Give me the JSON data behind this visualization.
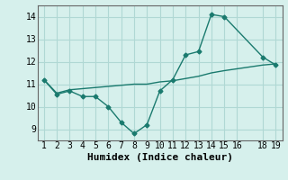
{
  "title": "",
  "xlabel": "Humidex (Indice chaleur)",
  "ylabel": "",
  "bg_color": "#d6f0ec",
  "grid_color": "#b0d8d4",
  "line_color": "#1a7a6e",
  "line1_x": [
    1,
    2,
    3,
    4,
    5,
    6,
    7,
    8,
    9,
    10,
    11,
    12,
    13,
    14,
    15,
    18,
    19
  ],
  "line1_y": [
    11.2,
    10.55,
    10.7,
    10.45,
    10.45,
    10.0,
    9.3,
    8.8,
    9.2,
    10.7,
    11.2,
    12.3,
    12.45,
    14.1,
    14.0,
    12.2,
    11.85
  ],
  "line2_x": [
    1,
    2,
    3,
    4,
    5,
    6,
    7,
    8,
    9,
    10,
    11,
    12,
    13,
    14,
    15,
    18,
    19
  ],
  "line2_y": [
    11.2,
    10.6,
    10.75,
    10.8,
    10.85,
    10.9,
    10.95,
    11.0,
    11.0,
    11.1,
    11.15,
    11.25,
    11.35,
    11.5,
    11.6,
    11.85,
    11.9
  ],
  "ylim": [
    8.5,
    14.5
  ],
  "xlim": [
    0.5,
    19.5
  ],
  "yticks": [
    9,
    10,
    11,
    12,
    13,
    14
  ],
  "xticks": [
    1,
    2,
    3,
    4,
    5,
    6,
    7,
    8,
    9,
    10,
    11,
    12,
    13,
    14,
    15,
    16,
    18,
    19
  ],
  "fontsize": 7,
  "xlabel_fontsize": 8
}
